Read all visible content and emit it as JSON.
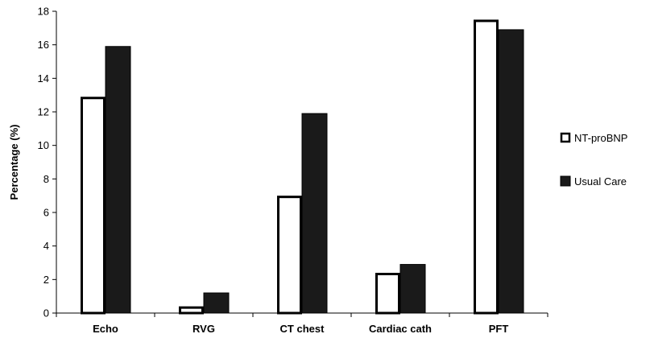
{
  "chart_data": {
    "type": "bar",
    "ylabel": "Percentage (%)",
    "xlabel": "",
    "ylim": [
      0,
      18
    ],
    "yticks": [
      0,
      2,
      4,
      6,
      8,
      10,
      12,
      14,
      16,
      18
    ],
    "categories": [
      "Echo",
      "RVG",
      "CT chest",
      "Cardiac cath",
      "PFT"
    ],
    "series": [
      {
        "name": "NT-proBNP",
        "values": [
          12.9,
          0.4,
          7.0,
          2.4,
          17.5
        ],
        "fill": "#ffffff",
        "stroke": "#000000"
      },
      {
        "name": "Usual Care",
        "values": [
          15.9,
          1.2,
          11.9,
          2.9,
          16.9
        ],
        "fill": "#1a1a1a",
        "stroke": "#000000"
      }
    ],
    "legend_position": "right",
    "grid": false
  }
}
